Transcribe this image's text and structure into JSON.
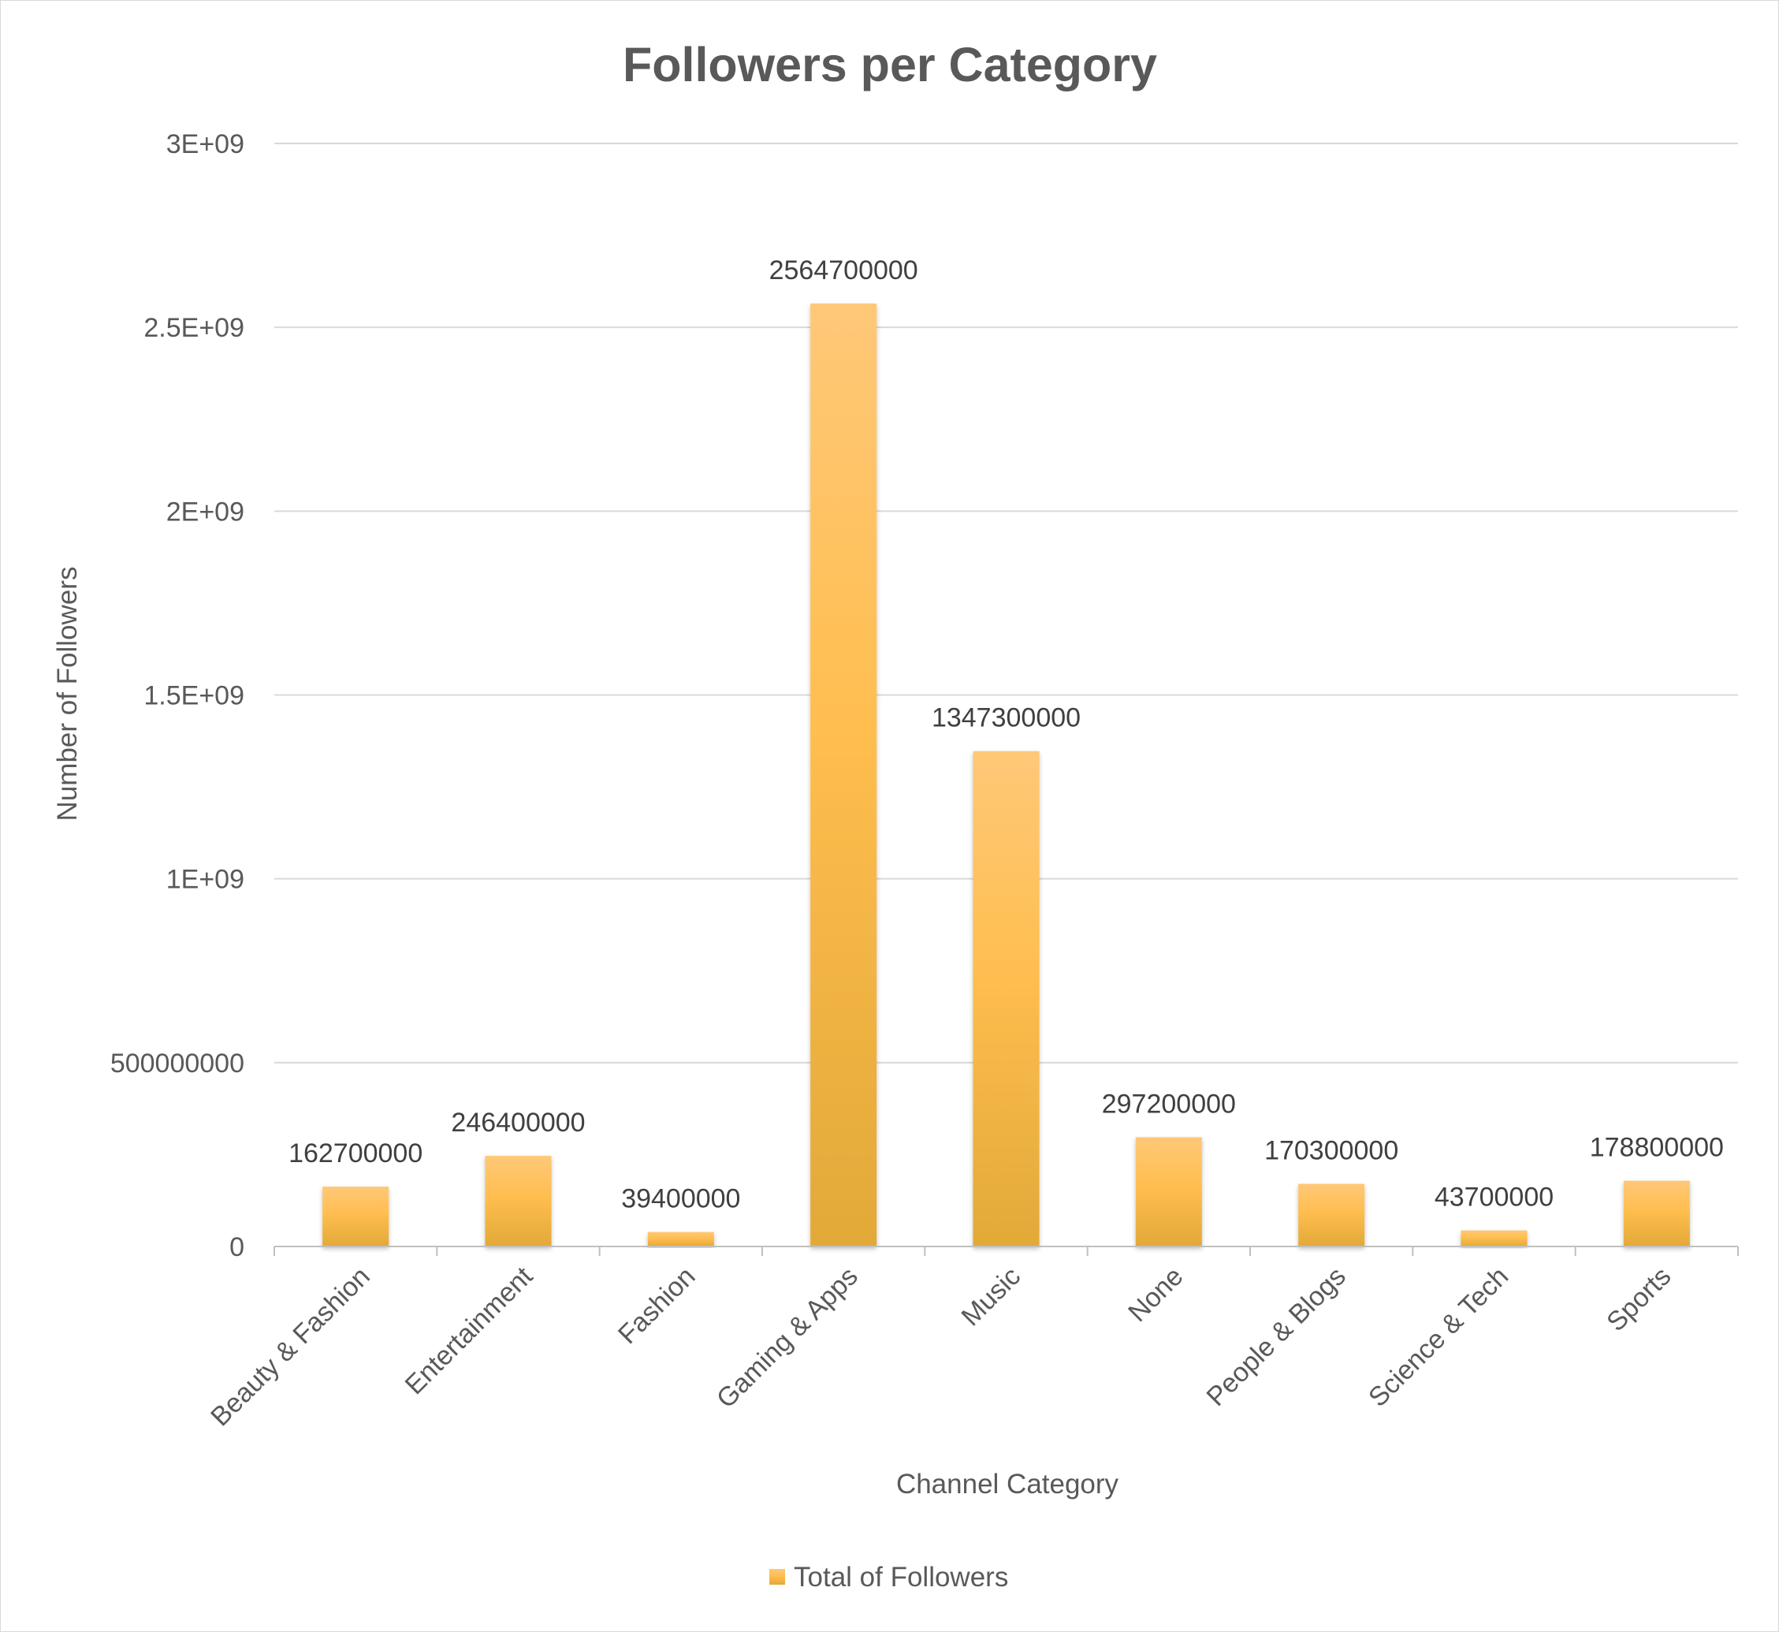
{
  "chart_data": {
    "type": "bar",
    "title": "Followers per Category",
    "xlabel": "Channel Category",
    "ylabel": "Number of Followers",
    "categories": [
      "Beauty & Fashion",
      "Entertainment",
      "Fashion",
      "Gaming & Apps",
      "Music",
      "None",
      "People & Blogs",
      "Science & Tech",
      "Sports"
    ],
    "series": [
      {
        "name": "Total of Followers",
        "values": [
          162700000,
          246400000,
          39400000,
          2564700000,
          1347300000,
          297200000,
          170300000,
          43700000,
          178800000
        ],
        "color": "#FFC05A"
      }
    ],
    "data_labels": [
      "162700000",
      "246400000",
      "39400000",
      "2564700000",
      "1347300000",
      "297200000",
      "170300000",
      "43700000",
      "178800000"
    ],
    "ylim": [
      0,
      3000000000
    ],
    "yticks": [
      {
        "value": 0,
        "label": "0"
      },
      {
        "value": 500000000,
        "label": "500000000"
      },
      {
        "value": 1000000000,
        "label": "1E+09"
      },
      {
        "value": 1500000000,
        "label": "1.5E+09"
      },
      {
        "value": 2000000000,
        "label": "2E+09"
      },
      {
        "value": 2500000000,
        "label": "2.5E+09"
      },
      {
        "value": 3000000000,
        "label": "3E+09"
      }
    ],
    "grid": true,
    "legend_position": "bottom"
  }
}
